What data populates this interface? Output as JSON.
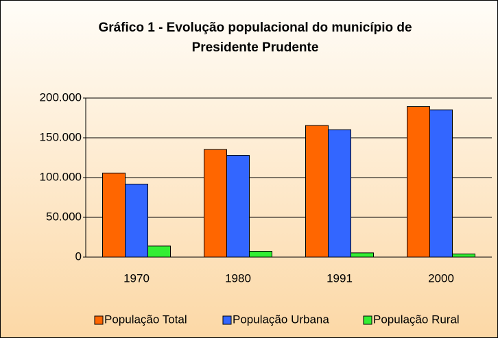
{
  "chart_data": {
    "type": "bar",
    "title": [
      "Gráfico 1  - Evolução populacional do município de",
      "Presidente Prudente"
    ],
    "categories": [
      "1970",
      "1980",
      "1991",
      "2000"
    ],
    "series": [
      {
        "name": "População Total",
        "color": "#ff6600",
        "values": [
          105700,
          135300,
          165500,
          189200
        ]
      },
      {
        "name": "População Urbana",
        "color": "#3366ff",
        "values": [
          91800,
          128000,
          160200,
          185200
        ]
      },
      {
        "name": "População Rural",
        "color": "#33ee33",
        "values": [
          13900,
          7300,
          5300,
          4000
        ]
      }
    ],
    "ylim": [
      0,
      200000
    ],
    "yticks": [
      0,
      {
        "value": 50000,
        "label": "50.000"
      },
      {
        "value": 100000,
        "label": "100.000"
      },
      {
        "value": 150000,
        "label": "150.000"
      },
      {
        "value": 200000,
        "label": "200.000"
      }
    ],
    "grid": true,
    "legend": "bottom"
  }
}
